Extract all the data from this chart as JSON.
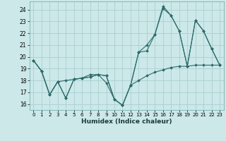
{
  "title": "",
  "xlabel": "Humidex (Indice chaleur)",
  "ylabel": "",
  "background_color": "#cce8e8",
  "grid_color": "#aacfcf",
  "line_color": "#2d6b6b",
  "ylim": [
    15.5,
    24.7
  ],
  "xlim": [
    -0.5,
    23.5
  ],
  "yticks": [
    16,
    17,
    18,
    19,
    20,
    21,
    22,
    23,
    24
  ],
  "xticks": [
    0,
    1,
    2,
    3,
    4,
    5,
    6,
    7,
    8,
    9,
    10,
    11,
    12,
    13,
    14,
    15,
    16,
    17,
    18,
    19,
    20,
    21,
    22,
    23
  ],
  "series": [
    {
      "x": [
        0,
        1,
        2,
        3,
        4,
        5,
        6,
        7,
        8,
        9,
        10,
        11,
        12,
        13,
        14,
        15,
        16,
        17,
        18,
        19,
        20,
        21,
        22,
        23
      ],
      "y": [
        19.7,
        18.8,
        16.8,
        17.9,
        16.5,
        18.1,
        18.2,
        18.3,
        18.5,
        18.4,
        16.4,
        15.9,
        17.6,
        18.0,
        18.4,
        18.7,
        18.9,
        19.1,
        19.2,
        19.2,
        19.3,
        19.3,
        19.3,
        19.3
      ]
    },
    {
      "x": [
        0,
        1,
        2,
        3,
        4,
        5,
        6,
        7,
        8,
        9,
        10,
        11,
        12,
        13,
        14,
        15,
        16,
        17,
        18,
        19,
        20,
        21,
        22,
        23
      ],
      "y": [
        19.7,
        18.8,
        16.8,
        17.9,
        18.0,
        18.1,
        18.2,
        18.3,
        18.5,
        18.4,
        16.4,
        15.9,
        17.6,
        20.4,
        20.5,
        21.9,
        24.1,
        23.5,
        22.2,
        19.2,
        23.1,
        22.2,
        20.7,
        19.3
      ]
    },
    {
      "x": [
        0,
        1,
        2,
        3,
        4,
        5,
        6,
        7,
        8,
        9,
        10,
        11,
        12,
        13,
        14,
        15,
        16,
        17,
        18,
        19,
        20,
        21,
        22,
        23
      ],
      "y": [
        19.7,
        18.8,
        16.8,
        17.9,
        16.5,
        18.1,
        18.2,
        18.5,
        18.5,
        17.8,
        16.4,
        15.9,
        17.6,
        20.4,
        21.0,
        21.9,
        24.3,
        23.5,
        22.2,
        19.2,
        23.1,
        22.2,
        20.7,
        19.3
      ]
    }
  ]
}
